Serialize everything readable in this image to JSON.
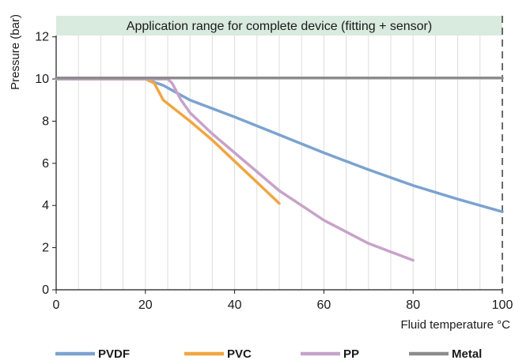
{
  "chart_data": {
    "type": "line",
    "title": "Application range for complete device (fitting + sensor)",
    "xlabel": "Fluid temperature °C",
    "ylabel": "Pressure (bar)",
    "xlim": [
      0,
      100
    ],
    "ylim": [
      0,
      13
    ],
    "xticks": [
      0,
      20,
      40,
      60,
      80,
      100
    ],
    "yticks": [
      0,
      2,
      4,
      6,
      8,
      10,
      12
    ],
    "grid": "vertical lines every 5 °C",
    "legend_position": "bottom",
    "banner_color": "#d9eadf",
    "series": [
      {
        "name": "PVDF",
        "color": "#7ba3cf",
        "x": [
          0,
          20,
          24,
          30,
          40,
          50,
          60,
          70,
          80,
          90,
          100
        ],
        "y": [
          10,
          10,
          9.7,
          9.0,
          8.2,
          7.35,
          6.5,
          5.7,
          4.95,
          4.3,
          3.7
        ]
      },
      {
        "name": "PVC",
        "color": "#f0a640",
        "x": [
          5,
          20,
          22,
          24,
          30,
          35,
          40,
          45,
          50
        ],
        "y": [
          10,
          10,
          9.8,
          9.0,
          8.0,
          7.1,
          6.1,
          5.1,
          4.1
        ]
      },
      {
        "name": "PP",
        "color": "#c7a3c9",
        "x": [
          0,
          25,
          26,
          28,
          30,
          35,
          40,
          50,
          60,
          70,
          75,
          80
        ],
        "y": [
          10,
          10,
          9.8,
          9.0,
          8.4,
          7.4,
          6.5,
          4.7,
          3.3,
          2.2,
          1.8,
          1.4
        ]
      },
      {
        "name": "Metal",
        "color": "#8c8c8c",
        "x": [
          0,
          100
        ],
        "y": [
          10.05,
          10.05
        ]
      }
    ]
  }
}
